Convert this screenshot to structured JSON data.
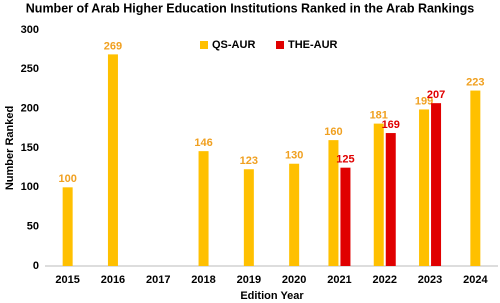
{
  "chart_data": {
    "type": "bar",
    "title": "Number of Arab Higher Education Institutions Ranked in the Arab Rankings",
    "x_label": "Edition Year",
    "y_label": "Number Ranked",
    "categories": [
      "2015",
      "2016",
      "2017",
      "2018",
      "2019",
      "2020",
      "2021",
      "2022",
      "2023",
      "2024"
    ],
    "series": [
      {
        "name": "QS-AUR",
        "color": "#FFC000",
        "label_color": "#F0A020",
        "values": [
          100,
          269,
          null,
          146,
          123,
          130,
          160,
          181,
          199,
          223
        ]
      },
      {
        "name": "THE-AUR",
        "color": "#E00000",
        "label_color": "#E00000",
        "values": [
          null,
          null,
          null,
          null,
          null,
          null,
          125,
          169,
          207,
          null
        ]
      }
    ],
    "ylim": [
      0,
      300
    ],
    "yticks": [
      0,
      50,
      100,
      150,
      200,
      250,
      300
    ],
    "grid": false,
    "legend": "top"
  }
}
